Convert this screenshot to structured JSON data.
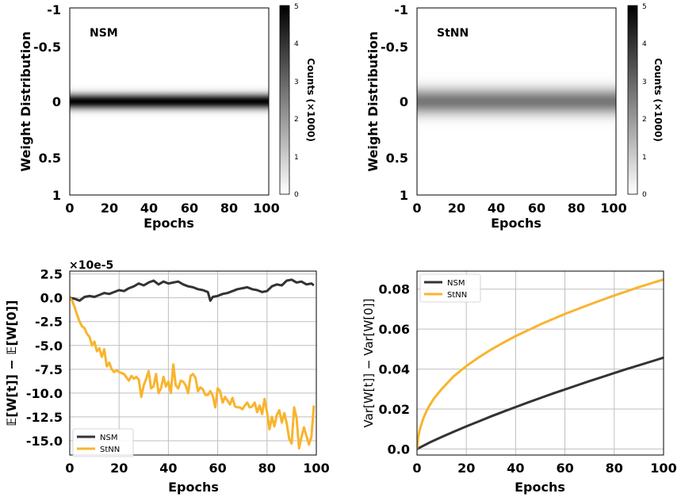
{
  "chart_data": [
    {
      "type": "heatmap",
      "label": "NSM",
      "xlabel": "Epochs",
      "ylabel": "Weight Distribution",
      "xlim": [
        0,
        100
      ],
      "ylim": [
        -1,
        1
      ],
      "x_ticks": [
        "0",
        "20",
        "40",
        "60",
        "80",
        "100"
      ],
      "y_ticks": [
        "-1",
        "-0.5",
        "0",
        "0.5",
        "1"
      ],
      "colorbar": {
        "label": "Counts (×1000)",
        "range": [
          0,
          5
        ],
        "ticks": [
          "0",
          "1",
          "2",
          "3",
          "4",
          "5"
        ]
      },
      "peak": 5.0,
      "spread": 0.055,
      "colors": {
        "low": "#ffffff",
        "high": "#000000"
      }
    },
    {
      "type": "heatmap",
      "label": "StNN",
      "xlabel": "Epochs",
      "ylabel": "Weight Distribution",
      "xlim": [
        0,
        100
      ],
      "ylim": [
        -1,
        1
      ],
      "x_ticks": [
        "0",
        "20",
        "40",
        "60",
        "80",
        "100"
      ],
      "y_ticks": [
        "-1",
        "-0.5",
        "0",
        "0.5",
        "1"
      ],
      "colorbar": {
        "label": "Counts (×1000)",
        "range": [
          0,
          5
        ],
        "ticks": [
          "0",
          "1",
          "2",
          "3",
          "4",
          "5"
        ]
      },
      "peak": 2.7,
      "spread": 0.095,
      "colors": {
        "low": "#ffffff",
        "high": "#000000"
      }
    },
    {
      "type": "line",
      "xlabel": "Epochs",
      "ylabel": "𝔼[W[t]] − 𝔼[W[0]]",
      "scale_label": "×10e-5",
      "xlim": [
        0,
        100
      ],
      "ylim": [
        -16.5,
        2.8
      ],
      "x_ticks": [
        0,
        20,
        40,
        60,
        80,
        100
      ],
      "y_ticks": [
        2.5,
        0.0,
        -2.5,
        -5.0,
        -7.5,
        -10.0,
        -12.5,
        -15.0
      ],
      "grid": true,
      "legend": "bottom-left",
      "series": [
        {
          "name": "NSM",
          "color": "#333333",
          "x": [
            0,
            2,
            4,
            6,
            8,
            10,
            12,
            14,
            16,
            18,
            20,
            22,
            24,
            26,
            28,
            30,
            32,
            34,
            36,
            38,
            40,
            42,
            44,
            46,
            48,
            50,
            52,
            54,
            56,
            57,
            58,
            60,
            62,
            64,
            66,
            68,
            70,
            72,
            74,
            76,
            78,
            80,
            82,
            84,
            86,
            88,
            90,
            92,
            94,
            96,
            98,
            99
          ],
          "y": [
            0,
            -0.1,
            -0.3,
            0.1,
            0.2,
            0.1,
            0.3,
            0.5,
            0.4,
            0.6,
            0.8,
            0.7,
            1.0,
            1.2,
            1.5,
            1.3,
            1.6,
            1.8,
            1.4,
            1.7,
            1.5,
            1.6,
            1.7,
            1.4,
            1.2,
            1.1,
            0.9,
            0.8,
            0.6,
            -0.3,
            0.1,
            0.2,
            0.4,
            0.5,
            0.7,
            0.9,
            1.0,
            1.1,
            0.9,
            0.8,
            0.6,
            0.7,
            1.2,
            1.4,
            1.3,
            1.8,
            1.9,
            1.6,
            1.7,
            1.4,
            1.5,
            1.3
          ]
        },
        {
          "name": "StNN",
          "color": "#F9B42D",
          "x": [
            0,
            1,
            2,
            3,
            4,
            5,
            6,
            7,
            8,
            9,
            10,
            11,
            12,
            13,
            14,
            15,
            16,
            17,
            18,
            19,
            20,
            22,
            24,
            25,
            26,
            27,
            28,
            29,
            30,
            31,
            32,
            33,
            34,
            35,
            36,
            37,
            38,
            39,
            40,
            41,
            42,
            43,
            44,
            45,
            46,
            47,
            48,
            49,
            50,
            51,
            52,
            53,
            54,
            55,
            56,
            57,
            58,
            59,
            60,
            61,
            62,
            63,
            64,
            65,
            66,
            67,
            68,
            69,
            70,
            71,
            72,
            73,
            74,
            75,
            76,
            77,
            78,
            79,
            80,
            81,
            82,
            83,
            84,
            85,
            86,
            87,
            88,
            89,
            90,
            91,
            92,
            93,
            94,
            95,
            96,
            97,
            98,
            99
          ],
          "y": [
            0,
            -0.3,
            -1.0,
            -1.8,
            -2.5,
            -3.0,
            -3.2,
            -3.8,
            -4.1,
            -5.0,
            -4.6,
            -5.6,
            -5.3,
            -6.2,
            -5.4,
            -7.2,
            -6.8,
            -7.5,
            -7.8,
            -7.6,
            -7.8,
            -8.0,
            -8.7,
            -8.2,
            -8.5,
            -8.3,
            -8.6,
            -10.4,
            -9.2,
            -8.5,
            -7.7,
            -9.5,
            -9.3,
            -8.0,
            -10.0,
            -9.5,
            -8.3,
            -9.3,
            -8.8,
            -10.0,
            -7.0,
            -9.2,
            -9.5,
            -8.7,
            -8.8,
            -9.2,
            -10.0,
            -8.2,
            -8.0,
            -8.4,
            -9.8,
            -9.4,
            -9.6,
            -10.2,
            -10.2,
            -9.8,
            -10.3,
            -11.5,
            -9.5,
            -9.8,
            -11.0,
            -10.4,
            -10.8,
            -11.2,
            -10.5,
            -11.4,
            -11.5,
            -11.5,
            -11.7,
            -11.3,
            -11.0,
            -11.5,
            -11.4,
            -11.0,
            -12.0,
            -11.3,
            -12.2,
            -10.6,
            -12.0,
            -13.8,
            -12.5,
            -13.5,
            -12.3,
            -11.8,
            -13.1,
            -12.1,
            -13.2,
            -14.8,
            -15.3,
            -11.5,
            -12.6,
            -15.8,
            -14.6,
            -13.6,
            -14.5,
            -15.4,
            -14.6,
            -11.3
          ]
        }
      ]
    },
    {
      "type": "line",
      "xlabel": "Epochs",
      "ylabel": "Var[W[t]] − Var[W[0]]",
      "xlim": [
        0,
        100
      ],
      "ylim": [
        -0.003,
        0.089
      ],
      "x_ticks": [
        0,
        20,
        40,
        60,
        80,
        100
      ],
      "y_ticks": [
        "0.0",
        "0.02",
        "0.04",
        "0.06",
        "0.08"
      ],
      "grid": true,
      "legend": "top-left",
      "series": [
        {
          "name": "NSM",
          "color": "#333333",
          "x": [
            0,
            5,
            10,
            15,
            20,
            25,
            30,
            35,
            40,
            45,
            50,
            55,
            60,
            65,
            70,
            75,
            80,
            85,
            90,
            95,
            100
          ],
          "y": [
            0,
            0.0032,
            0.006,
            0.0087,
            0.0113,
            0.0138,
            0.0163,
            0.0187,
            0.021,
            0.0233,
            0.0255,
            0.0277,
            0.0298,
            0.0319,
            0.034,
            0.036,
            0.038,
            0.04,
            0.0419,
            0.0438,
            0.0457
          ]
        },
        {
          "name": "StNN",
          "color": "#F9B42D",
          "x": [
            0,
            0.5,
            1,
            2,
            3,
            4,
            5,
            7,
            10,
            15,
            20,
            25,
            30,
            35,
            40,
            50,
            60,
            70,
            80,
            90,
            100
          ],
          "y": [
            0,
            0.006,
            0.009,
            0.0133,
            0.0166,
            0.0193,
            0.0216,
            0.0255,
            0.03,
            0.0365,
            0.0415,
            0.0458,
            0.0497,
            0.0532,
            0.0565,
            0.0623,
            0.0676,
            0.0723,
            0.0768,
            0.081,
            0.0848
          ]
        }
      ]
    }
  ]
}
